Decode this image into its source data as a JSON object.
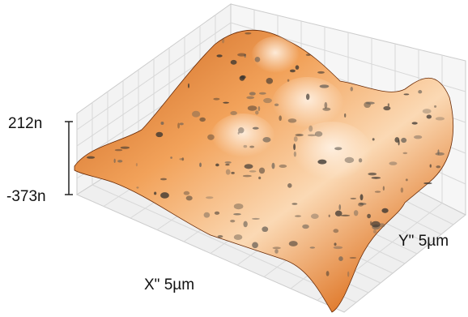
{
  "axes": {
    "z_max": "212n",
    "z_min": "-373n",
    "x_label": "X\" 5µm",
    "y_label": "Y\" 5µm"
  }
}
